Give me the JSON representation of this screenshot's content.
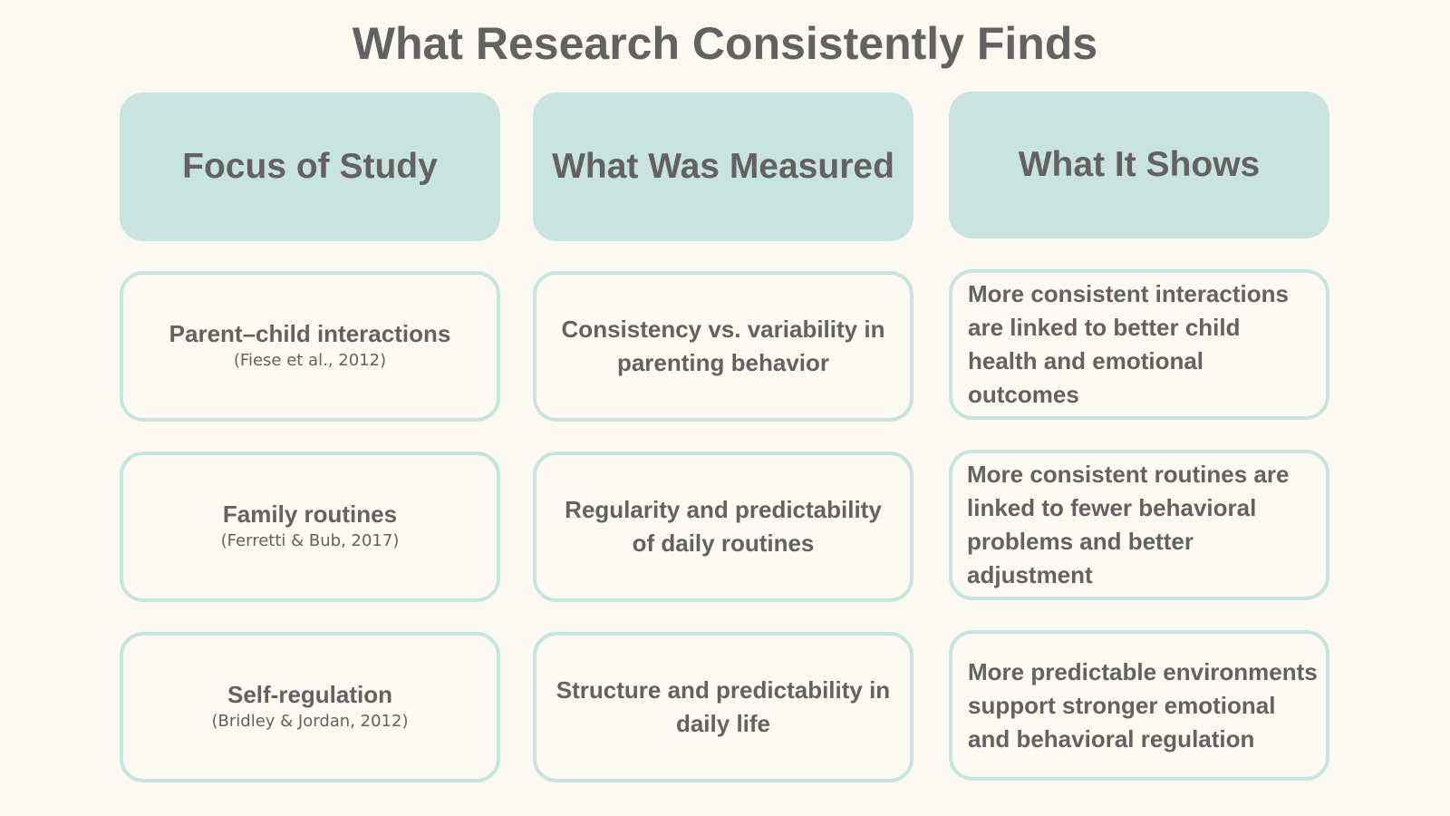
{
  "title": "What Research Consistently Finds",
  "headers": {
    "focus": "Focus of Study",
    "measured": "What Was Measured",
    "shows": "What It Shows"
  },
  "rows": [
    {
      "focus": "Parent–child interactions",
      "citation": "(Fiese et al., 2012)",
      "measured": "Consistency vs. variability in parenting behavior",
      "shows": "More consistent interactions are linked to better child health and emotional outcomes"
    },
    {
      "focus": "Family routines",
      "citation": "(Ferretti & Bub, 2017)",
      "measured": "Regularity and predictability of daily routines",
      "shows": "More consistent routines  are linked to fewer behavioral problems and better adjustment"
    },
    {
      "focus": "Self-regulation",
      "citation": "(Bridley & Jordan, 2012)",
      "measured": "Structure and predictability in daily life",
      "shows": "More predictable environments support stronger emotional and behavioral regulation"
    }
  ],
  "colors": {
    "background": "#fcf9f3",
    "accent": "#c9e4df",
    "text": "#626262"
  }
}
